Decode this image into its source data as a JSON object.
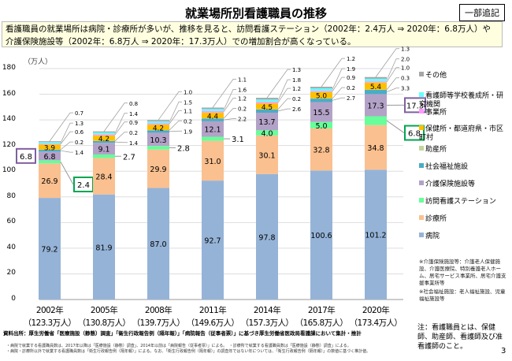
{
  "header": {
    "title": "就業場所別看護職員の推移",
    "badge": "一部追記",
    "summary": "看護職員の就業場所は病院・診療所が多いが、推移を見ると、訪問看護ステーション（2002年：2.4万人 ⇒ 2020年：6.8万人）や介護保険施設等（2002年：6.8万人 ⇒ 2020年：17.3万人）での増加割合が高くなっている。"
  },
  "chart_data": {
    "type": "bar",
    "stacked": true,
    "ylabel": "（万人）",
    "ylim": [
      0,
      180
    ],
    "yticks": [
      0,
      20,
      40,
      60,
      80,
      100,
      120,
      140,
      160,
      180
    ],
    "grid": true,
    "legend": "right",
    "categories": [
      "2002年",
      "2005年",
      "2008年",
      "2011年",
      "2014年",
      "2017年",
      "2020年"
    ],
    "totals": [
      "（123.3万人）",
      "（130.8万人）",
      "（139.7万人）",
      "（149.6万人）",
      "（157.3万人）",
      "（165.8万人）",
      "（173.4万人）"
    ],
    "series": [
      {
        "name": "病院",
        "color": "#95b3d7",
        "values": [
          79.2,
          81.9,
          87.0,
          92.7,
          97.8,
          100.6,
          101.2
        ]
      },
      {
        "name": "診療所",
        "color": "#fac08f",
        "values": [
          26.9,
          28.4,
          29.9,
          31.0,
          30.1,
          32.8,
          34.8
        ]
      },
      {
        "name": "訪問看護ステーション",
        "color": "#66ff99",
        "values": [
          2.4,
          2.7,
          2.8,
          3.1,
          4.0,
          5.0,
          6.8
        ]
      },
      {
        "name": "介護保険施設等",
        "color": "#b3a2c7",
        "values": [
          6.8,
          9.1,
          10.3,
          12.1,
          13.7,
          15.5,
          17.3
        ]
      },
      {
        "name": "社会福祉施設",
        "color": "#4bacc6",
        "values": [
          1.4,
          1.4,
          1.9,
          2.2,
          2.6,
          2.7,
          3.3
        ]
      },
      {
        "name": "助産所",
        "color": "#c3d69b",
        "values": [
          0.2,
          0.2,
          0.2,
          0.2,
          0.2,
          0.2,
          0.3
        ]
      },
      {
        "name": "保健所・都道府県・市区町村",
        "color": "#ffc000",
        "values": [
          3.9,
          4.2,
          4.2,
          4.4,
          4.5,
          5.0,
          5.4
        ]
      },
      {
        "name": "事業所",
        "color": "#ff99ff",
        "values": [
          0.6,
          0.9,
          1.1,
          1.2,
          1.2,
          0.9,
          1.0
        ]
      },
      {
        "name": "看護師等学校養成所・研究機関",
        "color": "#66ffff",
        "values": [
          1.3,
          1.4,
          1.5,
          1.6,
          1.8,
          1.9,
          2.0
        ]
      },
      {
        "name": "その他",
        "color": "#a6a6a6",
        "values": [
          0.7,
          0.8,
          1.0,
          1.1,
          1.3,
          1.2,
          1.3
        ]
      }
    ]
  },
  "legend": [
    "その他",
    "看護師等学校養成所・研究機関",
    "事業所",
    "保健所・都道府県・市区町村",
    "助産所",
    "社会福祉施設",
    "介護保険施設等",
    "訪問看護ステーション",
    "診療所",
    "病院"
  ],
  "notes": {
    "kaigo": "※介護保険施設等：介護老人保健施設、介護医療院、特別養護老人ホーム、居宅サービス事業所、居宅介護支援事業所等",
    "shakai": "※社会福祉施設：老人福祉施設、児童福祉施設等",
    "def": "注：看護職員とは、保健師、助産師、看護師及び准看護師のこと。"
  },
  "footer": {
    "source": "資料出所：厚生労働省「医療施設（静態）調査」「衛生行政報告例（隔年報）」「病院報告（従事者票）」に基づき厚生労働省医政局看護課において集計・推計",
    "line1": "・病院で就業する看護職員数は、2017年以降は「医療施設（静態）調査」、2014年以前は「病院報告（従事者票）」による。　・診療所で就業する看護職員数は「医療施設（静態）調査」による。",
    "line2": "・病院・診療所以外で就業する看護職員数は「衛生行政報告例（隔年報）」による。なお、「衛生行政報告例（隔年報）」の調査年ではない年については、「衛生行政報告例（隔年報）」の数値に基づく推計値。",
    "page": "3"
  }
}
